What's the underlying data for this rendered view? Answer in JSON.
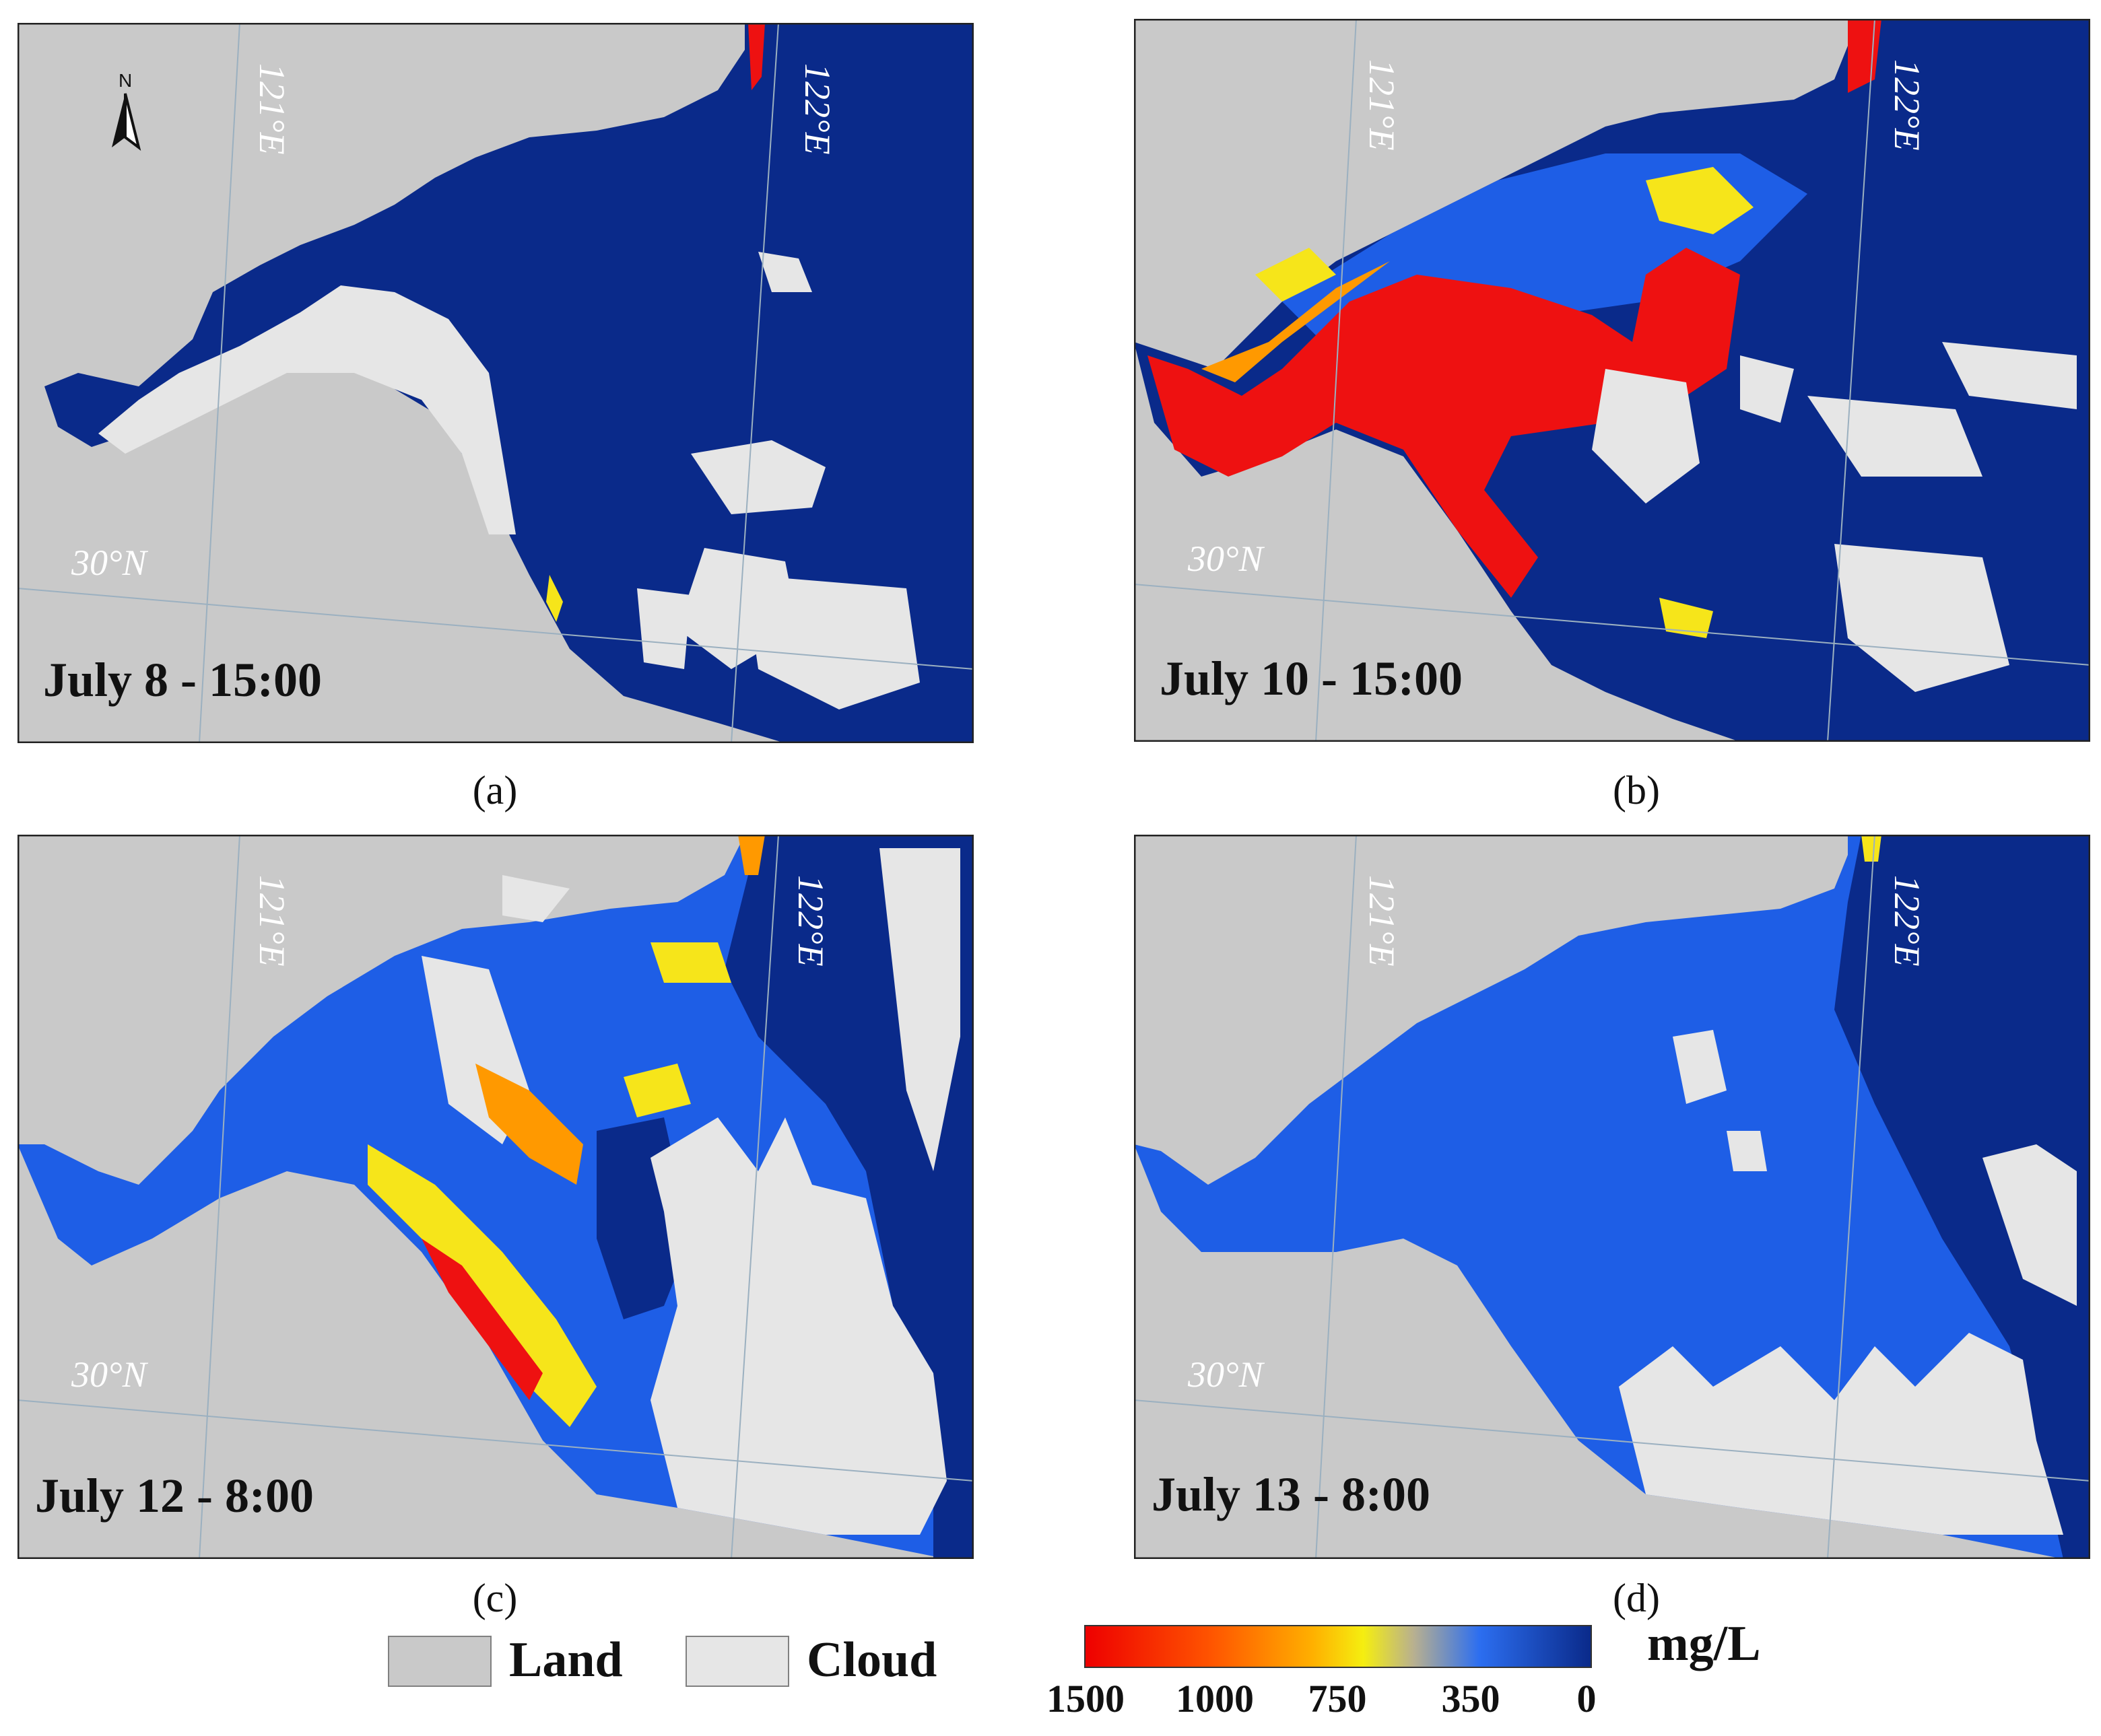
{
  "panels": [
    {
      "id": "a",
      "date_label": "July 8 - 15:00",
      "caption": "(a)"
    },
    {
      "id": "b",
      "date_label": "July 10 - 15:00",
      "caption": "(b)"
    },
    {
      "id": "c",
      "date_label": "July 12 - 8:00",
      "caption": "(c)"
    },
    {
      "id": "d",
      "date_label": "July 13 - 8:00",
      "caption": "(d)"
    }
  ],
  "grid_labels": {
    "lon1": "121°E",
    "lon2": "122°E",
    "lat": "30°N"
  },
  "north_arrow": "N",
  "legend": {
    "land_label": "Land",
    "cloud_label": "Cloud",
    "unit": "mg/L",
    "colorbar_ticks": [
      "1500",
      "1000",
      "750",
      "350",
      "0"
    ]
  },
  "colors": {
    "land": "#c9c9c9",
    "cloud": "#e6e6e6",
    "low": "#0a2a8a",
    "mid": "#1e5ee6",
    "yellow": "#f6e51a",
    "orange": "#ff9900",
    "red": "#ee1111"
  }
}
